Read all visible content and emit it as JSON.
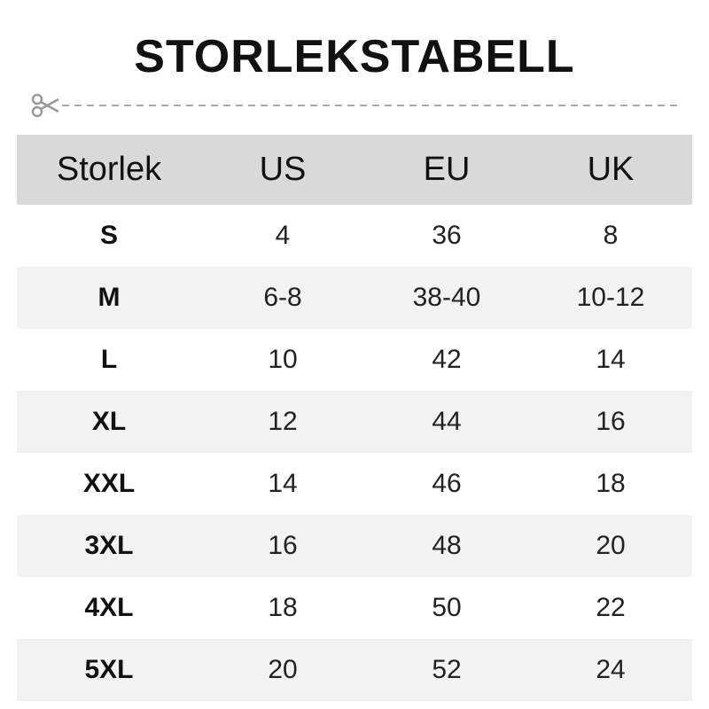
{
  "title": "STORLEKSTABELL",
  "colors": {
    "header_bg": "#d9d9d9",
    "alt_row_bg": "#f2f2f2"
  },
  "table": {
    "headers": [
      "Storlek",
      "US",
      "EU",
      "UK"
    ],
    "rows": [
      [
        "S",
        "4",
        "36",
        "8"
      ],
      [
        "M",
        "6-8",
        "38-40",
        "10-12"
      ],
      [
        "L",
        "10",
        "42",
        "14"
      ],
      [
        "XL",
        "12",
        "44",
        "16"
      ],
      [
        "XXL",
        "14",
        "46",
        "18"
      ],
      [
        "3XL",
        "16",
        "48",
        "20"
      ],
      [
        "4XL",
        "18",
        "50",
        "22"
      ],
      [
        "5XL",
        "20",
        "52",
        "24"
      ]
    ]
  }
}
